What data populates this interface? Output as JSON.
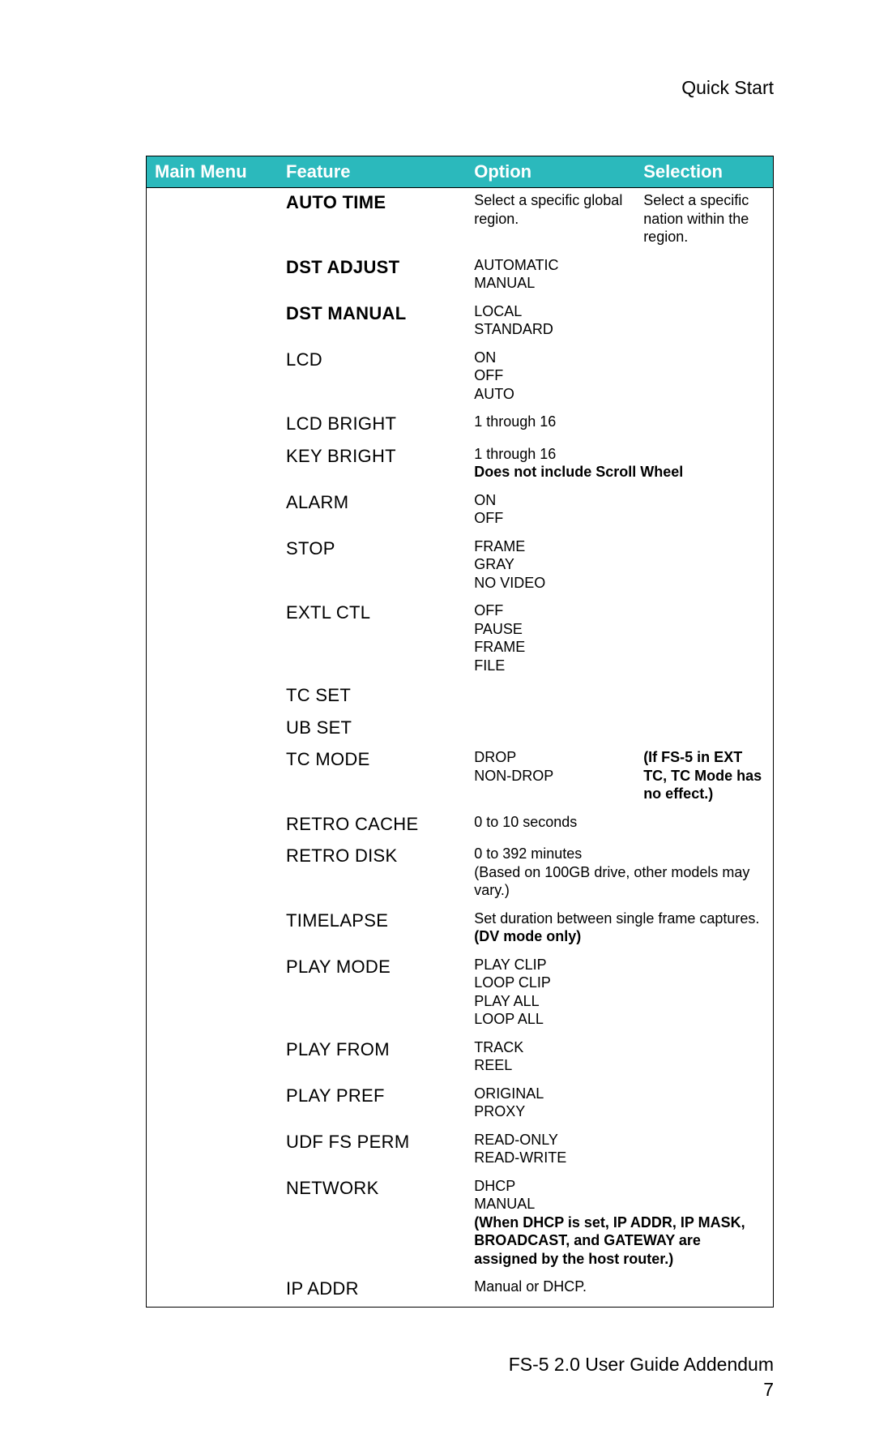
{
  "page_title": "Quick Start",
  "footer_line1": "FS-5 2.0 User Guide Addendum",
  "footer_line2": "7",
  "columns": {
    "c1": "Main Menu",
    "c2": "Feature",
    "c3": "Option",
    "c4": "Selection"
  },
  "colors": {
    "header_bg": "#2bb9bc",
    "header_fg": "#ffffff",
    "border": "#000000",
    "page_bg": "#ffffff",
    "text": "#000000"
  },
  "rows": [
    {
      "feature": "AUTO TIME",
      "feature_bold": true,
      "option": [
        {
          "t": "Select a specific global region."
        }
      ],
      "selection": [
        {
          "t": "Select a specific nation within the region."
        }
      ]
    },
    {
      "feature": "DST ADJUST",
      "feature_bold": true,
      "option": [
        {
          "t": "AUTOMATIC"
        },
        {
          "t": "MANUAL"
        }
      ]
    },
    {
      "feature": "DST MANUAL",
      "feature_bold": true,
      "option": [
        {
          "t": "LOCAL"
        },
        {
          "t": "STANDARD"
        }
      ]
    },
    {
      "feature": "LCD",
      "option": [
        {
          "t": "ON"
        },
        {
          "t": "OFF"
        },
        {
          "t": "AUTO"
        }
      ]
    },
    {
      "feature": "LCD BRIGHT",
      "option": [
        {
          "t": "1 through 16"
        }
      ]
    },
    {
      "feature": "KEY BRIGHT",
      "option": [
        {
          "t": "1 through 16"
        },
        {
          "t": "Does not include Scroll Wheel",
          "bold": true
        }
      ],
      "option_span": 2
    },
    {
      "feature": "ALARM",
      "option": [
        {
          "t": "ON"
        },
        {
          "t": "OFF"
        }
      ]
    },
    {
      "feature": "STOP",
      "option": [
        {
          "t": "FRAME"
        },
        {
          "t": "GRAY"
        },
        {
          "t": "NO VIDEO"
        }
      ]
    },
    {
      "feature": "EXTL CTL",
      "option": [
        {
          "t": "OFF"
        },
        {
          "t": "PAUSE"
        },
        {
          "t": "FRAME"
        },
        {
          "t": "FILE"
        }
      ]
    },
    {
      "feature": "TC SET"
    },
    {
      "feature": "UB SET"
    },
    {
      "feature": "TC MODE",
      "option": [
        {
          "t": "DROP"
        },
        {
          "t": "NON-DROP"
        }
      ],
      "selection": [
        {
          "t": "(If FS-5 in EXT TC, TC Mode has no effect.)",
          "bold": true
        }
      ]
    },
    {
      "feature": "RETRO CACHE",
      "option": [
        {
          "t": "0 to 10 seconds"
        }
      ]
    },
    {
      "feature": "RETRO DISK",
      "option": [
        {
          "t": "0 to 392 minutes"
        },
        {
          "t": "(Based on 100GB drive, other models may vary.)"
        }
      ],
      "option_span": 2
    },
    {
      "feature": "TIMELAPSE",
      "option": [
        {
          "t": "Set duration between single frame captures."
        },
        {
          "t": "(DV mode only)",
          "bold": true
        }
      ],
      "option_span": 2
    },
    {
      "feature": "PLAY MODE",
      "option": [
        {
          "t": "PLAY CLIP"
        },
        {
          "t": "LOOP CLIP"
        },
        {
          "t": "PLAY ALL"
        },
        {
          "t": "LOOP ALL"
        }
      ]
    },
    {
      "feature": "PLAY FROM",
      "option": [
        {
          "t": "TRACK"
        },
        {
          "t": "REEL"
        }
      ]
    },
    {
      "feature": "PLAY PREF",
      "option": [
        {
          "t": "ORIGINAL"
        },
        {
          "t": "PROXY"
        }
      ]
    },
    {
      "feature": "UDF FS PERM",
      "option": [
        {
          "t": "READ-ONLY"
        },
        {
          "t": "READ-WRITE"
        }
      ]
    },
    {
      "feature": "NETWORK",
      "option": [
        {
          "t": "DHCP"
        },
        {
          "t": "MANUAL"
        },
        {
          "t": "(When DHCP is set, IP ADDR, IP MASK, BROADCAST, and GATEWAY are assigned by the host router.)",
          "bold": true
        }
      ],
      "option_span": 2
    },
    {
      "feature": "IP ADDR",
      "option": [
        {
          "t": "Manual or DHCP."
        }
      ]
    }
  ]
}
